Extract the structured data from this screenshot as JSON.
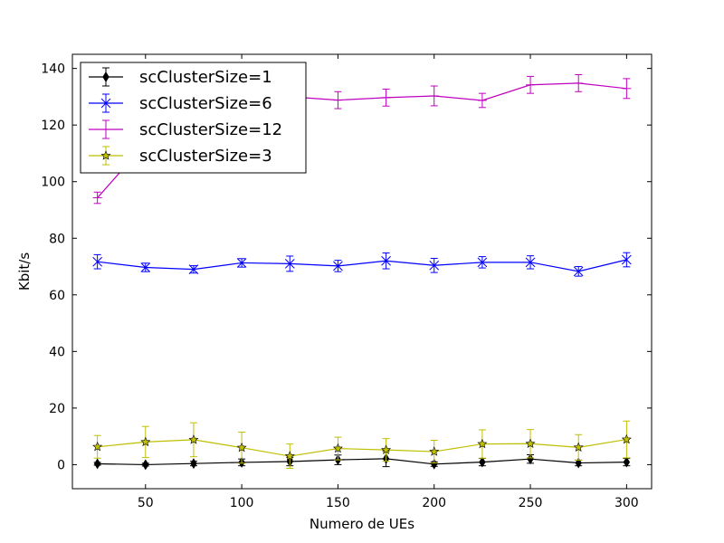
{
  "chart_data": {
    "type": "line",
    "xlabel": "Numero de UEs",
    "ylabel": "Kbit/s",
    "xlim": [
      12,
      313
    ],
    "ylim": [
      -8.5,
      145
    ],
    "x_ticks": [
      50,
      100,
      150,
      200,
      250,
      300
    ],
    "y_ticks": [
      0,
      20,
      40,
      60,
      80,
      100,
      120,
      140
    ],
    "grid": false,
    "legend_position": "top-left",
    "x": [
      25,
      50,
      75,
      100,
      125,
      150,
      175,
      200,
      225,
      250,
      275,
      300
    ],
    "series": [
      {
        "name": "scClusterSize=1",
        "color": "#000000",
        "marker": "diamond",
        "values": [
          0.3,
          0.0,
          0.4,
          0.8,
          1.1,
          1.7,
          2.1,
          0.2,
          0.9,
          2.0,
          0.6,
          0.9
        ],
        "errors": [
          0.5,
          0.5,
          0.8,
          1.2,
          1.5,
          1.7,
          2.8,
          0.8,
          1.3,
          1.5,
          1.0,
          1.3
        ]
      },
      {
        "name": "scClusterSize=6",
        "color": "#0000ff",
        "marker": "x",
        "values": [
          71.7,
          69.7,
          69.0,
          71.3,
          71.0,
          70.2,
          72.0,
          70.4,
          71.5,
          71.5,
          68.3,
          72.4
        ],
        "errors": [
          2.5,
          1.5,
          1.3,
          1.5,
          2.7,
          2.0,
          2.8,
          2.5,
          2.0,
          2.3,
          1.7,
          2.5
        ]
      },
      {
        "name": "scClusterSize=12",
        "color": "#bf00bf",
        "marker": "hline",
        "values": [
          94.3,
          113.5,
          122.0,
          127.0,
          130.0,
          128.8,
          129.7,
          130.3,
          128.7,
          134.2,
          134.8,
          132.9
        ],
        "errors": [
          2.0,
          3.0,
          3.0,
          3.0,
          3.0,
          3.0,
          3.0,
          3.5,
          2.5,
          3.0,
          3.0,
          3.5
        ]
      },
      {
        "name": "scClusterSize=3",
        "color": "#bfbf00",
        "marker": "star",
        "values": [
          6.3,
          8.0,
          8.8,
          6.0,
          3.0,
          5.7,
          5.2,
          4.6,
          7.3,
          7.4,
          6.1,
          8.9
        ],
        "errors": [
          4.0,
          5.5,
          6.0,
          5.5,
          4.3,
          4.0,
          4.0,
          4.0,
          5.0,
          5.0,
          4.5,
          6.5
        ]
      }
    ]
  }
}
